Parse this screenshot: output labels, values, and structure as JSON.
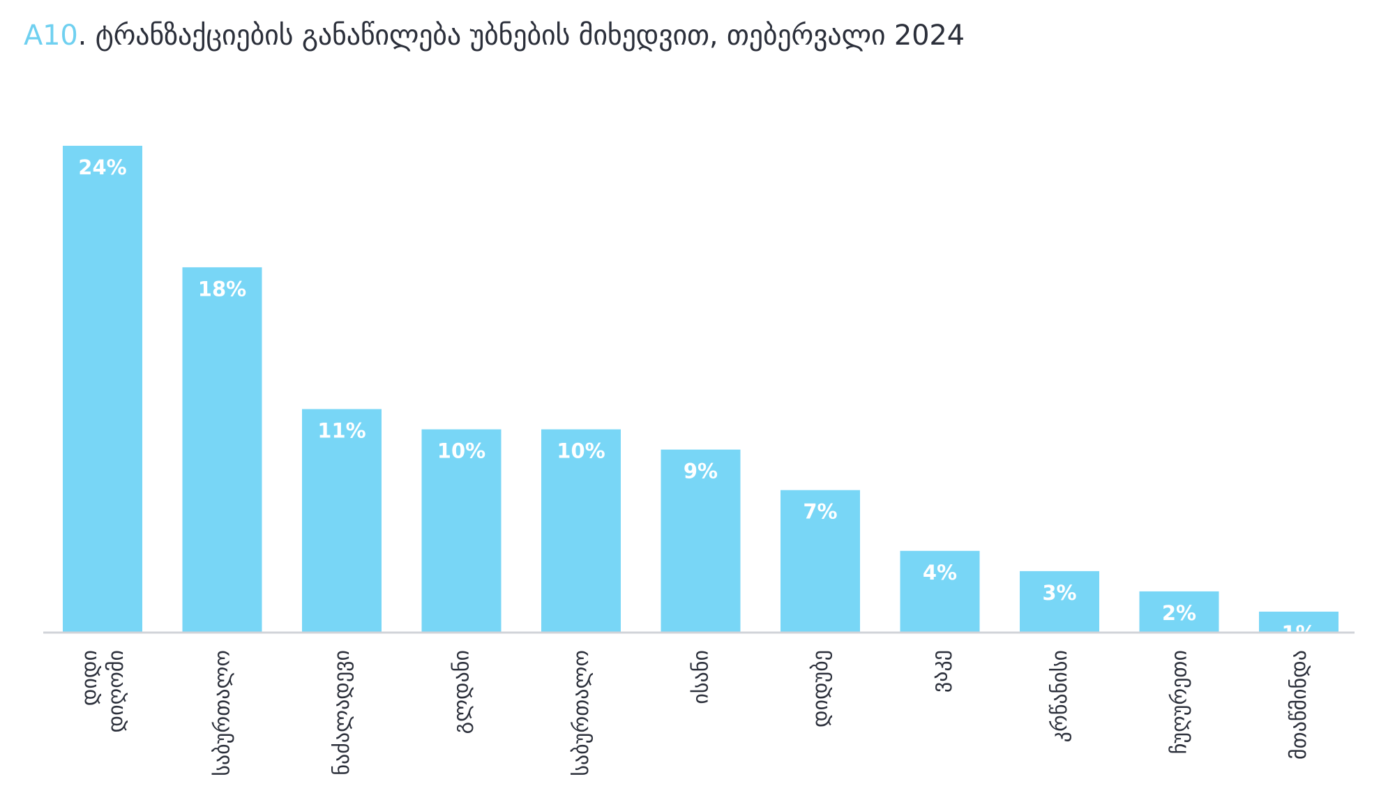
{
  "title": {
    "prefix": "A10",
    "text": ". ტრანზაქციების განაწილება უბნების მიხედვით, თებერვალი 2024"
  },
  "colors": {
    "bar": "#78d6f6",
    "axis": "#d0d3d8",
    "title_prefix": "#6fd0f0",
    "text": "#2b2f3a",
    "value_label": "#ffffff"
  },
  "chart_data": {
    "type": "bar",
    "title": "A10. ტრანზაქციების განაწილება უბნების მიხედვით, თებერვალი 2024",
    "xlabel": "",
    "ylabel": "",
    "ylim": [
      0,
      24
    ],
    "grid": false,
    "legend": "none",
    "unit": "%",
    "categories": [
      [
        "დიდი",
        "დიღომი"
      ],
      [
        "საბურთალო"
      ],
      [
        "ნაძალადევი"
      ],
      [
        "გლდანი"
      ],
      [
        "საბურთალო"
      ],
      [
        "ისანი"
      ],
      [
        "დიდუბე"
      ],
      [
        "ვაკე"
      ],
      [
        "კრწანისი"
      ],
      [
        "ჩუღურეთი"
      ],
      [
        "მთაწმინდა"
      ]
    ],
    "values": [
      24,
      18,
      11,
      10,
      10,
      9,
      7,
      4,
      3,
      2,
      1
    ],
    "value_labels": [
      "24%",
      "18%",
      "11%",
      "10%",
      "10%",
      "9%",
      "7%",
      "4%",
      "3%",
      "2%",
      "1%"
    ]
  }
}
